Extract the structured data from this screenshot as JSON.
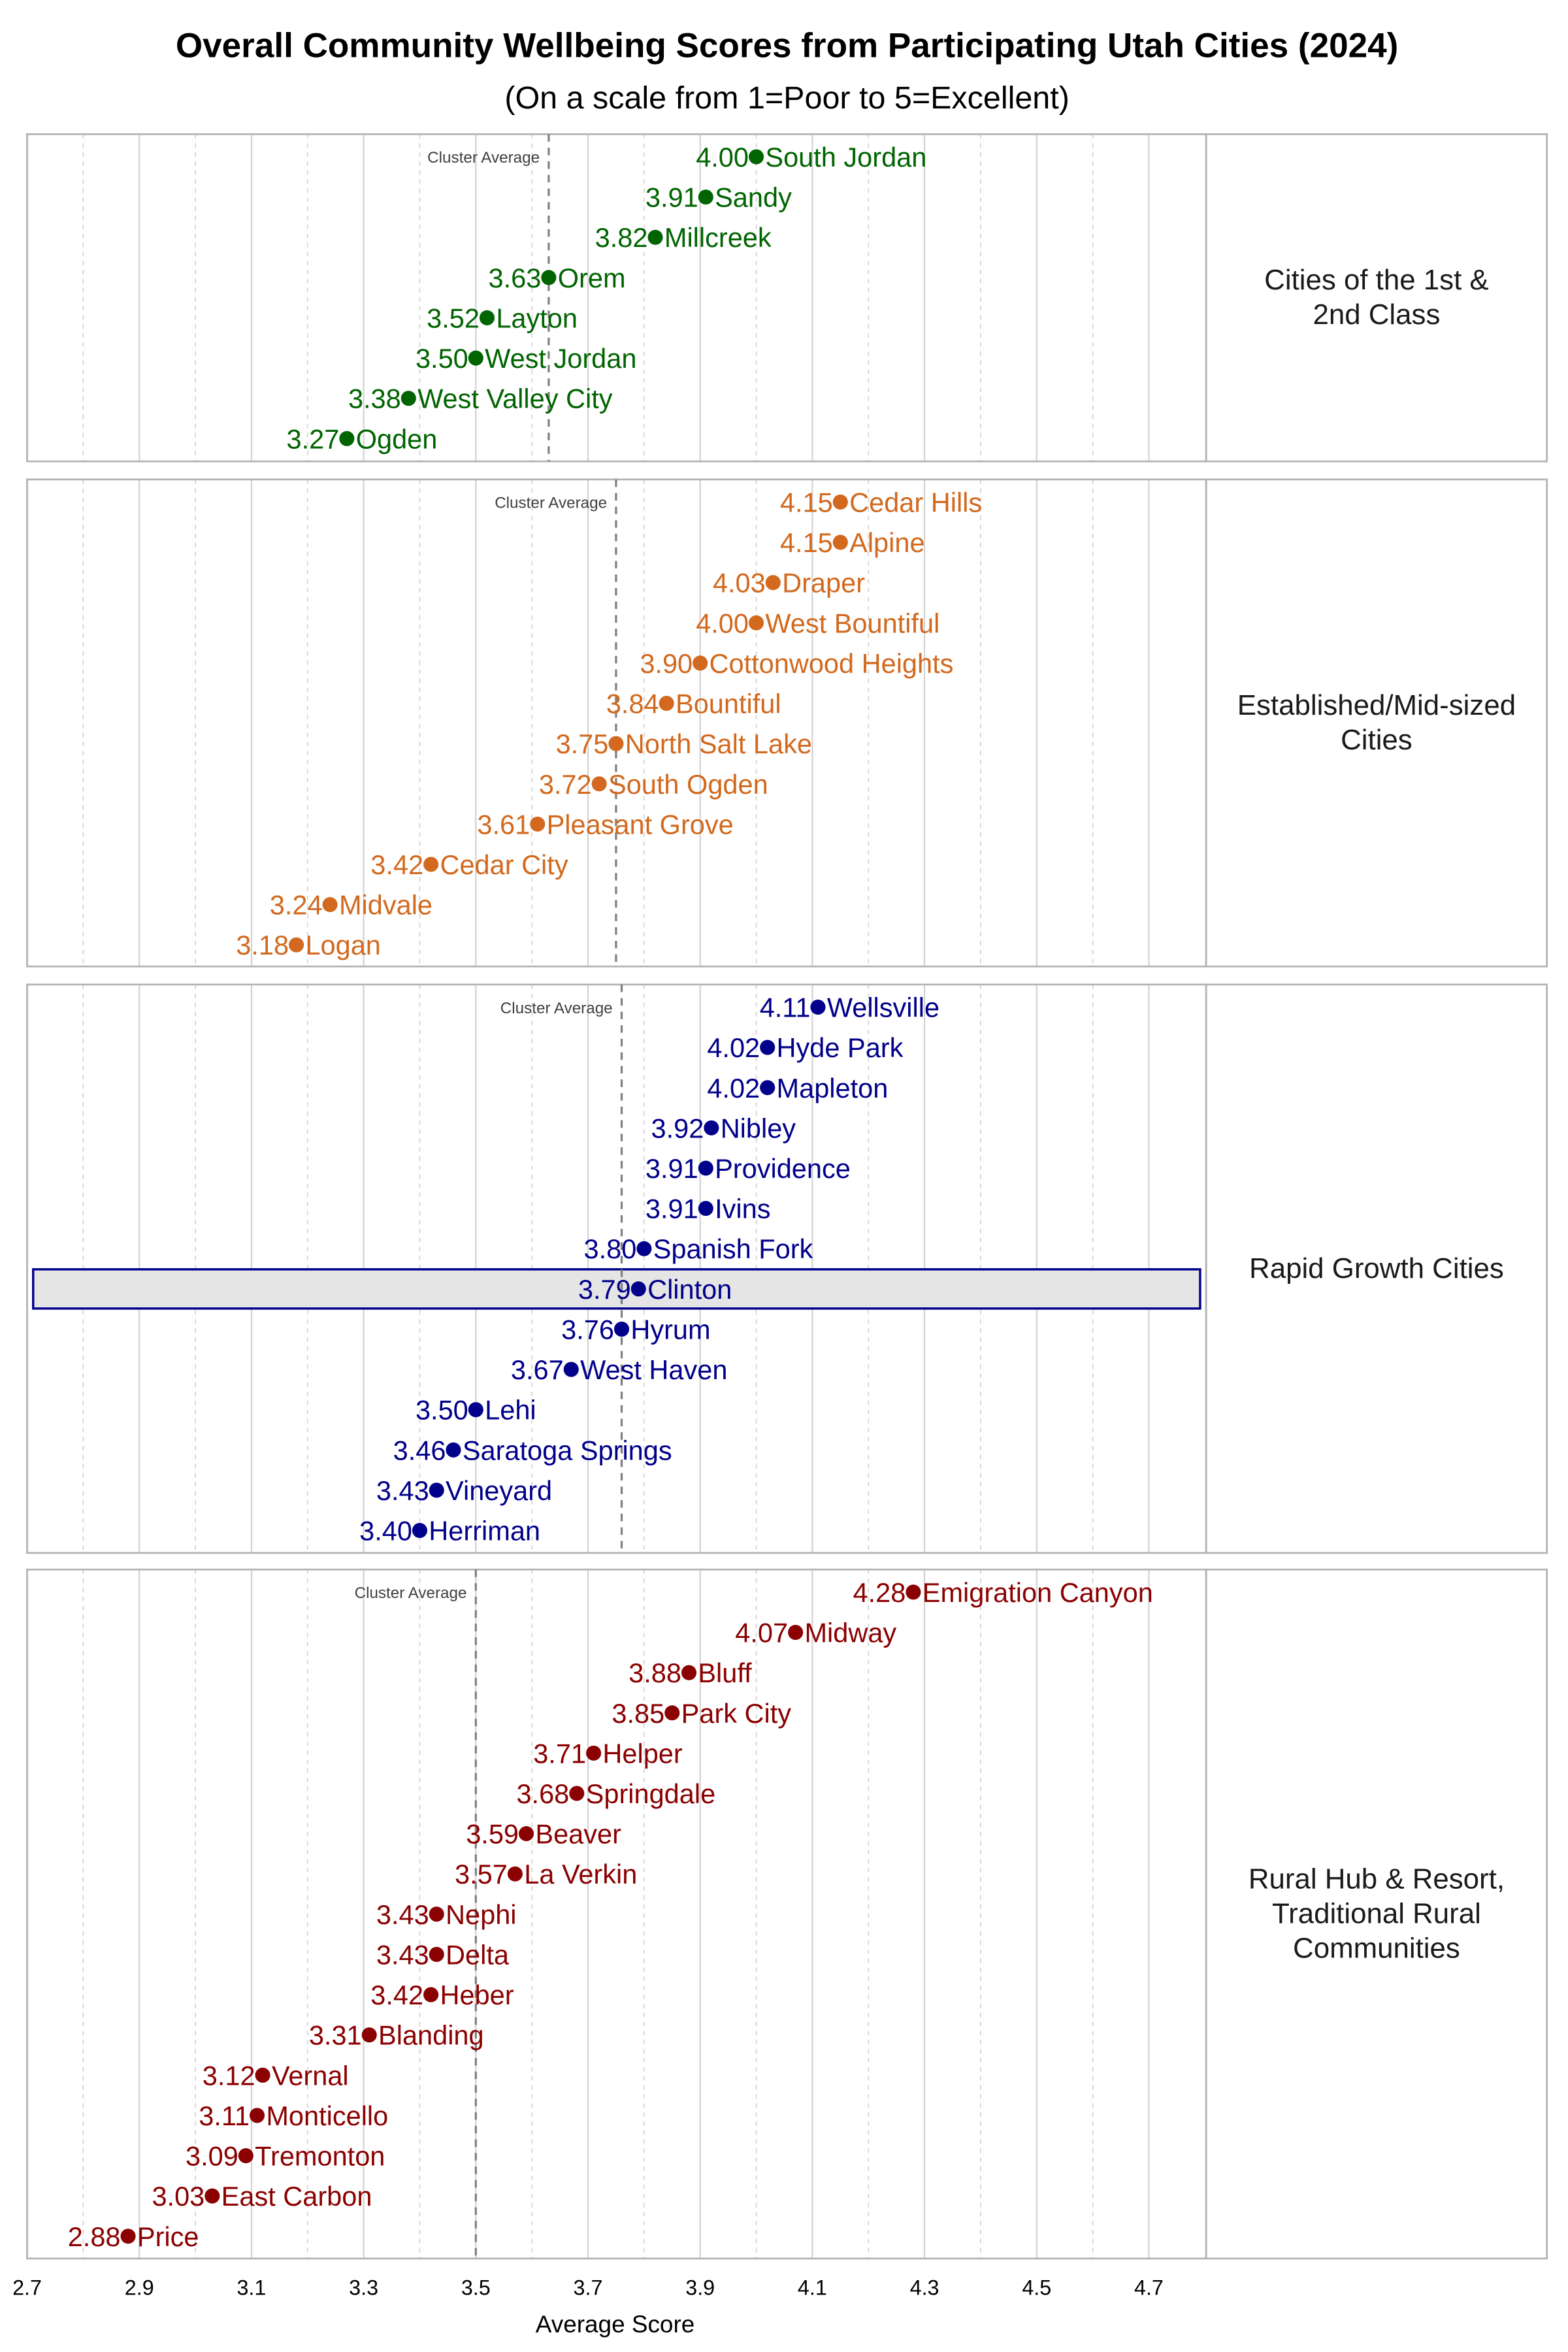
{
  "chart_data": {
    "type": "scatter",
    "title": "Overall Community Wellbeing Scores from Participating Utah Cities (2024)",
    "subtitle": "(On a scale from 1=Poor to 5=Excellent)",
    "xlabel": "Average Score",
    "xlim": [
      2.7,
      4.8
    ],
    "xticks": [
      "2.7",
      "2.9",
      "3.1",
      "3.3",
      "3.5",
      "3.7",
      "3.9",
      "4.1",
      "4.3",
      "4.5",
      "4.7"
    ],
    "grid": true,
    "cluster_average_label": "Cluster Average",
    "highlighted_city": "Clinton",
    "highlight_colors": {
      "fill": "#e5e5e5",
      "border": "#00008b"
    },
    "panels": [
      {
        "name": "Cities of the 1st & 2nd Class",
        "name_lines": [
          "Cities of the 1st &",
          "2nd Class"
        ],
        "color": "#006400",
        "cluster_average": 3.63,
        "points": [
          [
            "South Jordan",
            4.0
          ],
          [
            "Sandy",
            3.91
          ],
          [
            "Millcreek",
            3.82
          ],
          [
            "Orem",
            3.63
          ],
          [
            "Layton",
            3.52
          ],
          [
            "West Jordan",
            3.5
          ],
          [
            "West Valley City",
            3.38
          ],
          [
            "Ogden",
            3.27
          ]
        ]
      },
      {
        "name": "Established/Mid-sized Cities",
        "name_lines": [
          "Established/Mid-sized",
          "Cities"
        ],
        "color": "#d2691e",
        "cluster_average": 3.75,
        "points": [
          [
            "Cedar Hills",
            4.15
          ],
          [
            "Alpine",
            4.15
          ],
          [
            "Draper",
            4.03
          ],
          [
            "West Bountiful",
            4.0
          ],
          [
            "Cottonwood Heights",
            3.9
          ],
          [
            "Bountiful",
            3.84
          ],
          [
            "North Salt Lake",
            3.75
          ],
          [
            "South Ogden",
            3.72
          ],
          [
            "Pleasant Grove",
            3.61
          ],
          [
            "Cedar City",
            3.42
          ],
          [
            "Midvale",
            3.24
          ],
          [
            "Logan",
            3.18
          ]
        ]
      },
      {
        "name": "Rapid Growth Cities",
        "name_lines": [
          "Rapid Growth Cities"
        ],
        "color": "#00008b",
        "cluster_average": 3.76,
        "points": [
          [
            "Wellsville",
            4.11
          ],
          [
            "Hyde Park",
            4.02
          ],
          [
            "Mapleton",
            4.02
          ],
          [
            "Nibley",
            3.92
          ],
          [
            "Providence",
            3.91
          ],
          [
            "Ivins",
            3.91
          ],
          [
            "Spanish Fork",
            3.8
          ],
          [
            "Clinton",
            3.79
          ],
          [
            "Hyrum",
            3.76
          ],
          [
            "West Haven",
            3.67
          ],
          [
            "Lehi",
            3.5
          ],
          [
            "Saratoga Springs",
            3.46
          ],
          [
            "Vineyard",
            3.43
          ],
          [
            "Herriman",
            3.4
          ]
        ]
      },
      {
        "name": "Rural Hub & Resort, Traditional Rural Communities",
        "name_lines": [
          "Rural Hub & Resort,",
          "Traditional Rural",
          "Communities"
        ],
        "color": "#8b0000",
        "cluster_average": 3.5,
        "points": [
          [
            "Emigration Canyon",
            4.28
          ],
          [
            "Midway",
            4.07
          ],
          [
            "Bluff",
            3.88
          ],
          [
            "Park City",
            3.85
          ],
          [
            "Helper",
            3.71
          ],
          [
            "Springdale",
            3.68
          ],
          [
            "Beaver",
            3.59
          ],
          [
            "La Verkin",
            3.57
          ],
          [
            "Nephi",
            3.43
          ],
          [
            "Delta",
            3.43
          ],
          [
            "Heber",
            3.42
          ],
          [
            "Blanding",
            3.31
          ],
          [
            "Vernal",
            3.12
          ],
          [
            "Monticello",
            3.11
          ],
          [
            "Tremonton",
            3.09
          ],
          [
            "East Carbon",
            3.03
          ],
          [
            "Price",
            2.88
          ]
        ]
      }
    ]
  }
}
